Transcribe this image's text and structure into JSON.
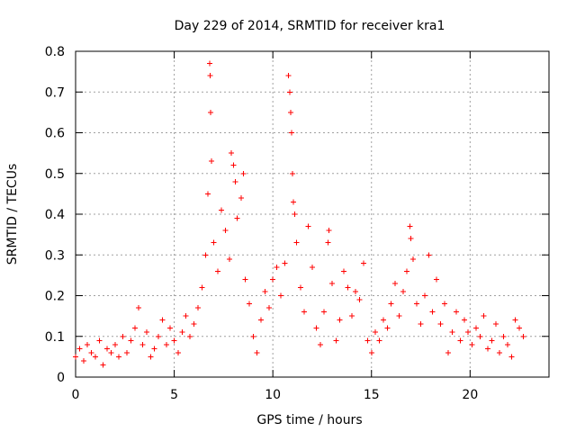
{
  "chart_data": {
    "type": "scatter",
    "title": "Day 229 of 2014, SRMTID for receiver kra1",
    "xlabel": "GPS time / hours",
    "ylabel": "SRMTID / TECUs",
    "xlim": [
      0,
      24
    ],
    "ylim": [
      0,
      0.8
    ],
    "xticks": [
      0,
      5,
      10,
      15,
      20
    ],
    "xtick_labels": [
      "0",
      "5",
      "10",
      "15",
      "20"
    ],
    "yticks": [
      0,
      0.1,
      0.2,
      0.3,
      0.4,
      0.5,
      0.6,
      0.7,
      0.8
    ],
    "ytick_labels": [
      "0",
      "0.1",
      "0.2",
      "0.3",
      "0.4",
      "0.5",
      "0.6",
      "0.7",
      "0.8"
    ],
    "grid": true,
    "marker": "plus",
    "marker_color": "#ff0000",
    "series": [
      {
        "name": "SRMTID",
        "points": [
          [
            0.0,
            0.05
          ],
          [
            0.2,
            0.07
          ],
          [
            0.4,
            0.04
          ],
          [
            0.6,
            0.08
          ],
          [
            0.8,
            0.06
          ],
          [
            1.0,
            0.05
          ],
          [
            1.2,
            0.09
          ],
          [
            1.4,
            0.03
          ],
          [
            1.6,
            0.07
          ],
          [
            1.8,
            0.06
          ],
          [
            2.0,
            0.08
          ],
          [
            2.2,
            0.05
          ],
          [
            2.4,
            0.1
          ],
          [
            2.6,
            0.06
          ],
          [
            2.8,
            0.09
          ],
          [
            3.0,
            0.12
          ],
          [
            3.2,
            0.17
          ],
          [
            3.4,
            0.08
          ],
          [
            3.6,
            0.11
          ],
          [
            3.8,
            0.05
          ],
          [
            4.0,
            0.07
          ],
          [
            4.2,
            0.1
          ],
          [
            4.4,
            0.14
          ],
          [
            4.6,
            0.08
          ],
          [
            4.8,
            0.12
          ],
          [
            5.0,
            0.09
          ],
          [
            5.2,
            0.06
          ],
          [
            5.4,
            0.11
          ],
          [
            5.6,
            0.15
          ],
          [
            5.8,
            0.1
          ],
          [
            6.0,
            0.13
          ],
          [
            6.2,
            0.17
          ],
          [
            6.4,
            0.22
          ],
          [
            6.6,
            0.3
          ],
          [
            6.7,
            0.45
          ],
          [
            6.8,
            0.77
          ],
          [
            6.82,
            0.74
          ],
          [
            6.85,
            0.65
          ],
          [
            6.9,
            0.53
          ],
          [
            7.0,
            0.33
          ],
          [
            7.2,
            0.26
          ],
          [
            7.4,
            0.41
          ],
          [
            7.6,
            0.36
          ],
          [
            7.8,
            0.29
          ],
          [
            7.9,
            0.55
          ],
          [
            8.0,
            0.52
          ],
          [
            8.1,
            0.48
          ],
          [
            8.2,
            0.39
          ],
          [
            8.4,
            0.44
          ],
          [
            8.5,
            0.5
          ],
          [
            8.6,
            0.24
          ],
          [
            8.8,
            0.18
          ],
          [
            9.0,
            0.1
          ],
          [
            9.2,
            0.06
          ],
          [
            9.4,
            0.14
          ],
          [
            9.6,
            0.21
          ],
          [
            9.8,
            0.17
          ],
          [
            10.0,
            0.24
          ],
          [
            10.2,
            0.27
          ],
          [
            10.4,
            0.2
          ],
          [
            10.6,
            0.28
          ],
          [
            10.8,
            0.74
          ],
          [
            10.85,
            0.7
          ],
          [
            10.9,
            0.65
          ],
          [
            10.95,
            0.6
          ],
          [
            11.0,
            0.5
          ],
          [
            11.05,
            0.43
          ],
          [
            11.1,
            0.4
          ],
          [
            11.2,
            0.33
          ],
          [
            11.4,
            0.22
          ],
          [
            11.6,
            0.16
          ],
          [
            11.8,
            0.37
          ],
          [
            12.0,
            0.27
          ],
          [
            12.2,
            0.12
          ],
          [
            12.4,
            0.08
          ],
          [
            12.6,
            0.16
          ],
          [
            12.8,
            0.33
          ],
          [
            12.85,
            0.36
          ],
          [
            13.0,
            0.23
          ],
          [
            13.2,
            0.09
          ],
          [
            13.4,
            0.14
          ],
          [
            13.6,
            0.26
          ],
          [
            13.8,
            0.22
          ],
          [
            14.0,
            0.15
          ],
          [
            14.2,
            0.21
          ],
          [
            14.4,
            0.19
          ],
          [
            14.6,
            0.28
          ],
          [
            14.8,
            0.09
          ],
          [
            15.0,
            0.06
          ],
          [
            15.2,
            0.11
          ],
          [
            15.4,
            0.09
          ],
          [
            15.6,
            0.14
          ],
          [
            15.8,
            0.12
          ],
          [
            16.0,
            0.18
          ],
          [
            16.2,
            0.23
          ],
          [
            16.4,
            0.15
          ],
          [
            16.6,
            0.21
          ],
          [
            16.8,
            0.26
          ],
          [
            16.95,
            0.37
          ],
          [
            17.0,
            0.34
          ],
          [
            17.1,
            0.29
          ],
          [
            17.3,
            0.18
          ],
          [
            17.5,
            0.13
          ],
          [
            17.7,
            0.2
          ],
          [
            17.9,
            0.3
          ],
          [
            18.1,
            0.16
          ],
          [
            18.3,
            0.24
          ],
          [
            18.5,
            0.13
          ],
          [
            18.7,
            0.18
          ],
          [
            18.9,
            0.06
          ],
          [
            19.1,
            0.11
          ],
          [
            19.3,
            0.16
          ],
          [
            19.5,
            0.09
          ],
          [
            19.7,
            0.14
          ],
          [
            19.9,
            0.11
          ],
          [
            20.1,
            0.08
          ],
          [
            20.3,
            0.12
          ],
          [
            20.5,
            0.1
          ],
          [
            20.7,
            0.15
          ],
          [
            20.9,
            0.07
          ],
          [
            21.1,
            0.09
          ],
          [
            21.3,
            0.13
          ],
          [
            21.5,
            0.06
          ],
          [
            21.7,
            0.1
          ],
          [
            21.9,
            0.08
          ],
          [
            22.1,
            0.05
          ],
          [
            22.3,
            0.14
          ],
          [
            22.5,
            0.12
          ],
          [
            22.7,
            0.1
          ]
        ]
      }
    ]
  }
}
